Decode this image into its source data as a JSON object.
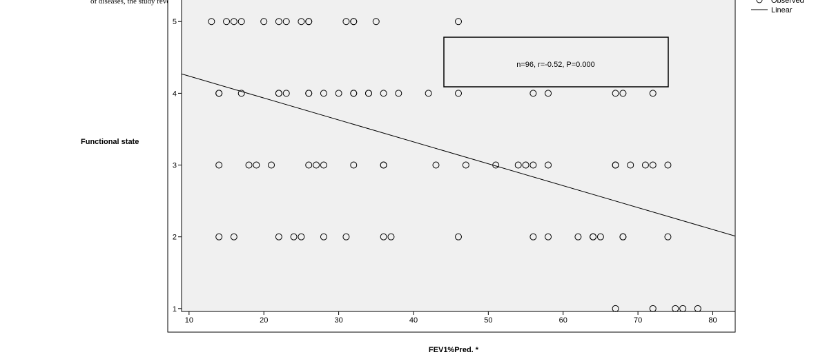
{
  "document_text": "of diseases, the study revealed that in both",
  "chart_data": {
    "type": "scatter",
    "x_label": "FEV1%Pred. *",
    "y_label": "Functional state",
    "annotation": "n=96, r=-0.52, P=0.000",
    "xlim": [
      9,
      83
    ],
    "ylim": [
      0.96,
      5.3
    ],
    "xticks": [
      10,
      20,
      30,
      40,
      50,
      60,
      70,
      80
    ],
    "yticks": [
      1,
      2,
      3,
      4,
      5
    ],
    "series": [
      {
        "name": "Observed",
        "type": "scatter",
        "color": "#000000",
        "x": [
          13,
          15,
          16,
          17,
          20,
          22,
          23,
          25,
          26,
          26,
          31,
          32,
          32,
          35,
          46,
          14,
          14,
          17,
          22,
          22,
          23,
          26,
          26,
          28,
          30,
          32,
          32,
          34,
          34,
          36,
          38,
          42,
          46,
          56,
          58,
          67,
          68,
          72,
          14,
          18,
          19,
          21,
          26,
          27,
          28,
          32,
          36,
          36,
          43,
          47,
          51,
          54,
          55,
          56,
          58,
          67,
          67,
          69,
          71,
          72,
          74,
          14,
          16,
          22,
          24,
          25,
          28,
          31,
          36,
          37,
          46,
          56,
          58,
          62,
          64,
          64,
          65,
          68,
          68,
          74,
          67,
          72,
          75,
          76,
          78
        ],
        "values": [
          5,
          5,
          5,
          5,
          5,
          5,
          5,
          5,
          5,
          5,
          5,
          5,
          5,
          5,
          5,
          4,
          4,
          4,
          4,
          4,
          4,
          4,
          4,
          4,
          4,
          4,
          4,
          4,
          4,
          4,
          4,
          4,
          4,
          4,
          4,
          4,
          4,
          4,
          3,
          3,
          3,
          3,
          3,
          3,
          3,
          3,
          3,
          3,
          3,
          3,
          3,
          3,
          3,
          3,
          3,
          3,
          3,
          3,
          3,
          3,
          3,
          2,
          2,
          2,
          2,
          2,
          2,
          2,
          2,
          2,
          2,
          2,
          2,
          2,
          2,
          2,
          2,
          2,
          2,
          2,
          1,
          1,
          1,
          1,
          1
        ]
      },
      {
        "name": "Linear",
        "type": "line",
        "color": "#000000",
        "x": [
          9,
          83
        ],
        "values": [
          4.27,
          2.01
        ]
      }
    ]
  }
}
